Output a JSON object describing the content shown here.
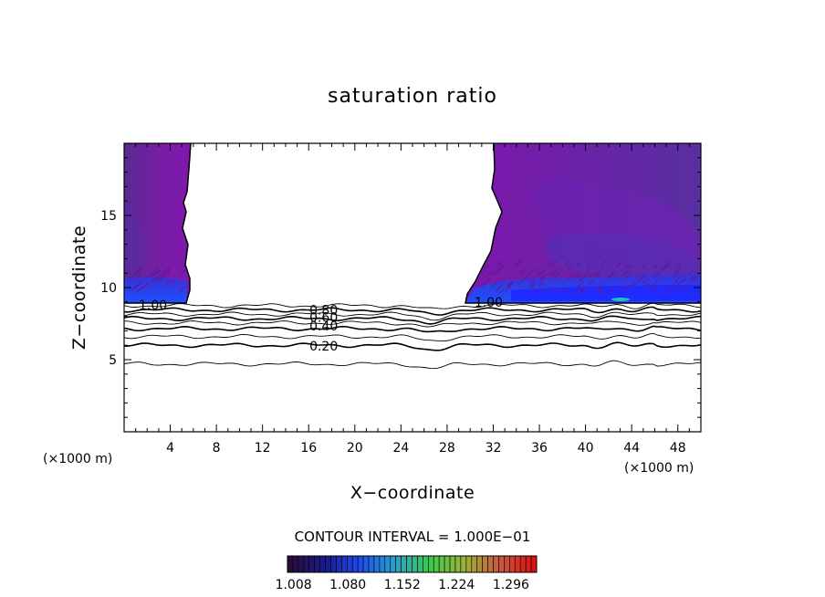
{
  "chart_data": {
    "type": "contour",
    "title": "saturation ratio",
    "xlabel": "X−coordinate",
    "ylabel": "Z−coordinate",
    "x_unit_left": "(×1000 m)",
    "x_unit_right": "(×1000 m)",
    "xlim": [
      0,
      50
    ],
    "ylim": [
      0,
      20
    ],
    "x_ticks": [
      4,
      8,
      12,
      16,
      20,
      24,
      28,
      32,
      36,
      40,
      44,
      48
    ],
    "y_ticks": [
      5,
      10,
      15
    ],
    "contour_interval_text": "CONTOUR INTERVAL = 1.000E−01",
    "colorbar": {
      "labels": [
        "1.008",
        "1.080",
        "1.152",
        "1.224",
        "1.296"
      ],
      "range": [
        1.0,
        1.33
      ],
      "colors": [
        "#2a0c3c",
        "#1a1a8c",
        "#1f4cf0",
        "#2aa0c8",
        "#3cc850",
        "#9ab438",
        "#c85a40",
        "#e01010"
      ]
    },
    "contour_labels": [
      {
        "text": "1.00",
        "x": 2.5,
        "z": 8.8
      },
      {
        "text": "1.00",
        "x": 31.6,
        "z": 9.0
      },
      {
        "text": "0.80",
        "x": 17.3,
        "z": 8.45
      },
      {
        "text": "0.60",
        "x": 17.3,
        "z": 7.95
      },
      {
        "text": "0.40",
        "x": 17.3,
        "z": 7.35
      },
      {
        "text": "0.20",
        "x": 17.3,
        "z": 5.95
      }
    ],
    "contour_lines": [
      {
        "level": 0.9,
        "z": 8.75,
        "bold": false
      },
      {
        "level": 0.8,
        "z": 8.45,
        "bold": true
      },
      {
        "level": 0.7,
        "z": 8.15,
        "bold": false
      },
      {
        "level": 0.6,
        "z": 7.85,
        "bold": true
      },
      {
        "level": 0.5,
        "z": 7.55,
        "bold": false
      },
      {
        "level": 0.4,
        "z": 7.15,
        "bold": true
      },
      {
        "level": 0.3,
        "z": 6.6,
        "bold": false
      },
      {
        "level": 0.2,
        "z": 6.0,
        "bold": true
      },
      {
        "level": 0.1,
        "z": 4.7,
        "bold": false
      }
    ],
    "supersaturated_regions": [
      {
        "x_start": 0,
        "x_end": 5.7,
        "z_bottom": 8.9,
        "z_top": 20
      },
      {
        "x_start": 29.7,
        "x_end": 50,
        "z_bottom": 8.9,
        "z_top": 20
      }
    ]
  }
}
